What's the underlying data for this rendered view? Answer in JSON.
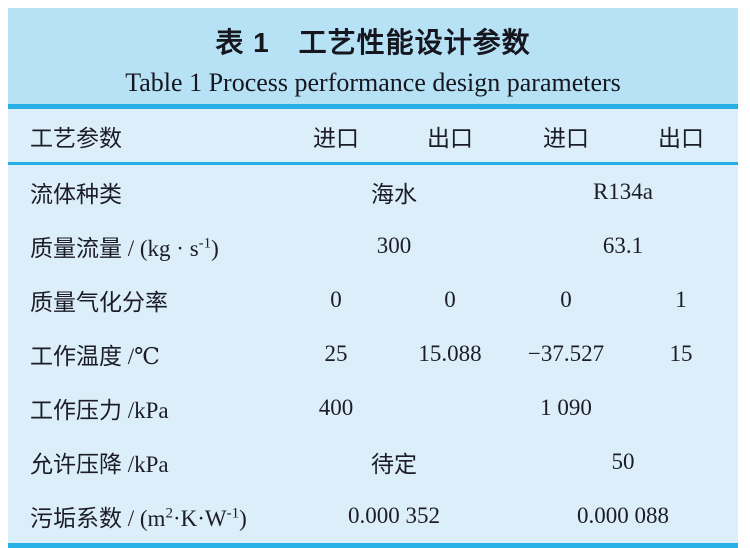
{
  "caption": {
    "zh": "表 1　工艺性能设计参数",
    "en": "Table 1  Process performance design parameters"
  },
  "table": {
    "header": {
      "label": "工艺参数",
      "cols": [
        "进口",
        "出口",
        "进口",
        "出口"
      ]
    },
    "rows": [
      {
        "name": "fluid-type",
        "label": [
          "流体种类"
        ],
        "cells": [
          {
            "text": "海水",
            "span": 2
          },
          {
            "text": "R134a",
            "span": 2
          }
        ]
      },
      {
        "name": "mass-flow-rate",
        "label": [
          "质量流量 / (kg · s",
          {
            "sup": "-1"
          },
          ")"
        ],
        "cells": [
          {
            "text": "300",
            "span": 2
          },
          {
            "text": "63.1",
            "span": 2
          }
        ]
      },
      {
        "name": "vapor-mass-fraction",
        "label": [
          "质量气化分率"
        ],
        "cells": [
          {
            "text": "0",
            "span": 1
          },
          {
            "text": "0",
            "span": 1
          },
          {
            "text": "0",
            "span": 1
          },
          {
            "text": "1",
            "span": 1
          }
        ]
      },
      {
        "name": "operating-temperature",
        "label": [
          "工作温度 /℃"
        ],
        "cells": [
          {
            "text": "25",
            "span": 1
          },
          {
            "text": "15.088",
            "span": 1
          },
          {
            "text": "−37.527",
            "span": 1
          },
          {
            "text": "15",
            "span": 1
          }
        ]
      },
      {
        "name": "operating-pressure",
        "label": [
          "工作压力 /kPa"
        ],
        "cells": [
          {
            "text": "400",
            "span": 1
          },
          {
            "text": "",
            "span": 1
          },
          {
            "text": "1 090",
            "span": 1
          },
          {
            "text": "",
            "span": 1
          }
        ]
      },
      {
        "name": "allowable-pressure-drop",
        "label": [
          "允许压降 /kPa"
        ],
        "cells": [
          {
            "text": "待定",
            "span": 2
          },
          {
            "text": "50",
            "span": 2
          }
        ]
      },
      {
        "name": "fouling-factor",
        "label": [
          "污垢系数 / (m",
          {
            "sup": "2"
          },
          "·K·W",
          {
            "sup": "-1"
          },
          ")"
        ],
        "cells": [
          {
            "text": "0.000 352",
            "span": 2
          },
          {
            "text": "0.000 088",
            "span": 2
          }
        ]
      }
    ]
  },
  "colors": {
    "title_band_bg": "#b7e2f6",
    "table_bg": "#dbeefa",
    "rule_cyan": "#27b0e6",
    "text": "#1c1c26",
    "page_bg": "#ffffff"
  }
}
